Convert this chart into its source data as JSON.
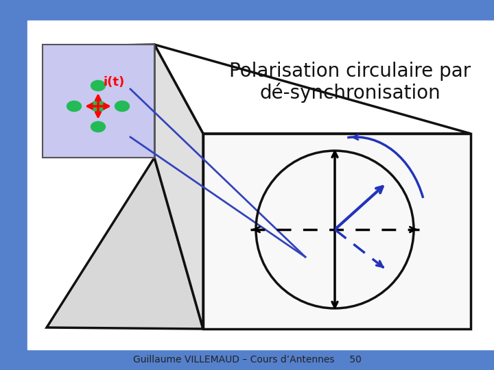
{
  "title_line1": "Polarisation circulaire par",
  "title_line2": "dé-synchronisation",
  "title_fontsize": 20,
  "bg_color": "#ffffff",
  "top_bar_color": "#5580cc",
  "bottom_bar_color": "#5580cc",
  "left_sidebar_color": "#5580cc",
  "footer_text": "Guillaume VILLEMAUD – Cours d’Antennes",
  "footer_page": "50",
  "footer_fontsize": 10,
  "small_box_color": "#c8c8f0",
  "blue_line_color": "#3344bb",
  "blue_arrow_color": "#2233bb",
  "black_color": "#111111",
  "dashed_color": "#333399"
}
